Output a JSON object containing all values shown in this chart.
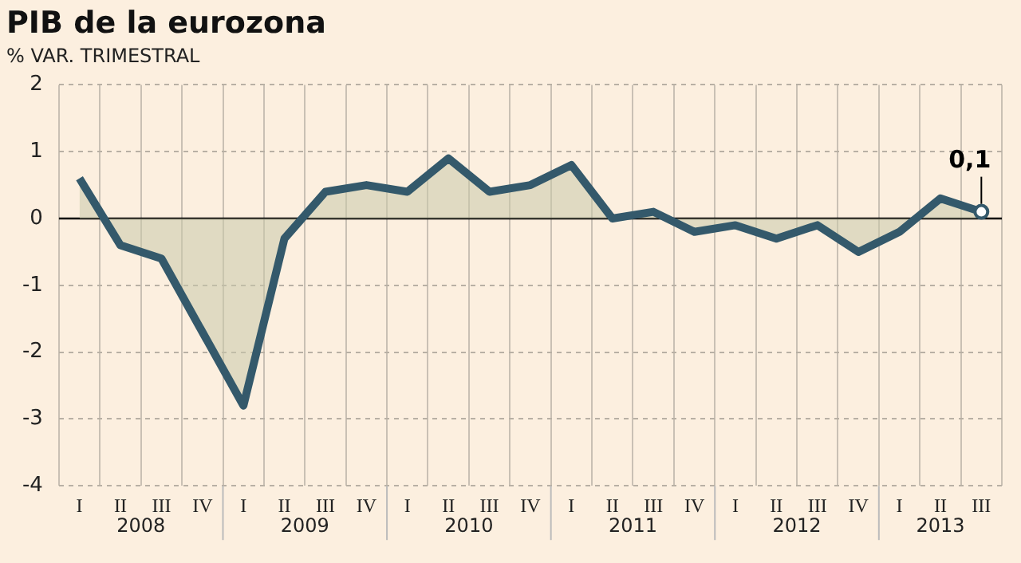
{
  "chart_data": {
    "type": "area",
    "title": "PIB de la eurozona",
    "subtitle": "% VAR. TRIMESTRAL",
    "categories": [
      "I",
      "II",
      "III",
      "IV",
      "I",
      "II",
      "III",
      "IV",
      "I",
      "II",
      "III",
      "IV",
      "I",
      "II",
      "III",
      "IV",
      "I",
      "II",
      "III",
      "IV",
      "I",
      "II",
      "III"
    ],
    "series": [
      {
        "color": "#34596b",
        "values": [
          0.6,
          -0.4,
          -0.6,
          -1.7,
          -2.8,
          -0.3,
          0.4,
          0.5,
          0.4,
          0.9,
          0.4,
          0.5,
          0.8,
          0.0,
          0.1,
          -0.2,
          -0.1,
          -0.3,
          -0.1,
          -0.5,
          -0.2,
          0.3,
          0.1
        ],
        "value_labels": [
          null,
          null,
          null,
          null,
          null,
          null,
          null,
          null,
          null,
          null,
          null,
          null,
          null,
          null,
          null,
          null,
          null,
          null,
          null,
          null,
          null,
          null,
          "0,1"
        ]
      }
    ],
    "annotations": [
      "2008",
      "2009",
      "2010",
      "2011",
      "2012",
      "2013"
    ],
    "ylim": [
      -4,
      2
    ],
    "yticks": [
      -4,
      -3,
      -2,
      -1,
      0,
      1,
      2
    ],
    "ref_lines": [
      {
        "axis": "y",
        "value": 0,
        "color": "#000000"
      }
    ],
    "grid": true,
    "legend": false
  }
}
